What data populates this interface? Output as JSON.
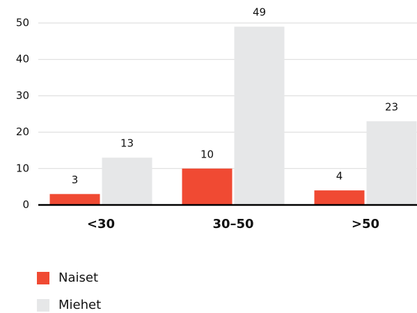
{
  "chart_data": {
    "type": "bar",
    "categories": [
      "<30",
      "30–50",
      ">50"
    ],
    "series": [
      {
        "name": "Naiset",
        "color": "#f04a33",
        "values": [
          3,
          10,
          4
        ]
      },
      {
        "name": "Miehet",
        "color": "#e6e7e8",
        "values": [
          13,
          49,
          23
        ]
      }
    ],
    "ylim": [
      0,
      50
    ],
    "yticks": [
      0,
      10,
      20,
      30,
      40,
      50
    ],
    "grid": true
  }
}
